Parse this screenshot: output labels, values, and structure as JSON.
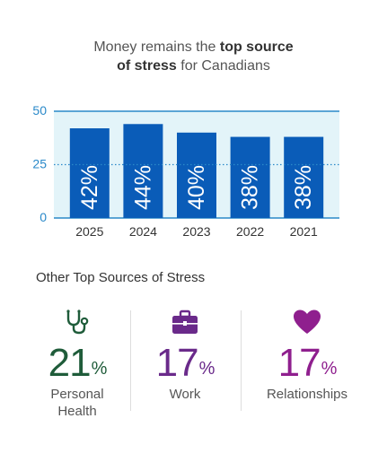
{
  "title": {
    "part1": "Money remains the ",
    "bold1": "top source",
    "bold2": "of stress",
    "part2": " for Canadians"
  },
  "chart_data": {
    "type": "bar",
    "categories": [
      "2025",
      "2024",
      "2023",
      "2022",
      "2021"
    ],
    "values": [
      42,
      44,
      40,
      38,
      38
    ],
    "value_labels": [
      "42%",
      "44%",
      "40%",
      "38%",
      "38%"
    ],
    "yticks": [
      0,
      25,
      50
    ],
    "ylim": [
      0,
      50
    ],
    "grid": "dotted line at 25",
    "colors": {
      "bar": "#0a5cb8",
      "plot_bg": "#e3f4f9",
      "axis": "#2a89c9",
      "tick_text": "#2a89c9"
    }
  },
  "other": {
    "heading": "Other Top Sources of Stress",
    "items": [
      {
        "value": "21",
        "unit": "%",
        "label1": "Personal",
        "label2": "Health",
        "color": "#1f5c3a",
        "icon": "stethoscope-icon"
      },
      {
        "value": "17",
        "unit": "%",
        "label1": "Work",
        "label2": "",
        "color": "#6a2a8a",
        "icon": "briefcase-icon"
      },
      {
        "value": "17",
        "unit": "%",
        "label1": "Relationships",
        "label2": "",
        "color": "#8f1f8e",
        "icon": "heart-icon"
      }
    ]
  }
}
